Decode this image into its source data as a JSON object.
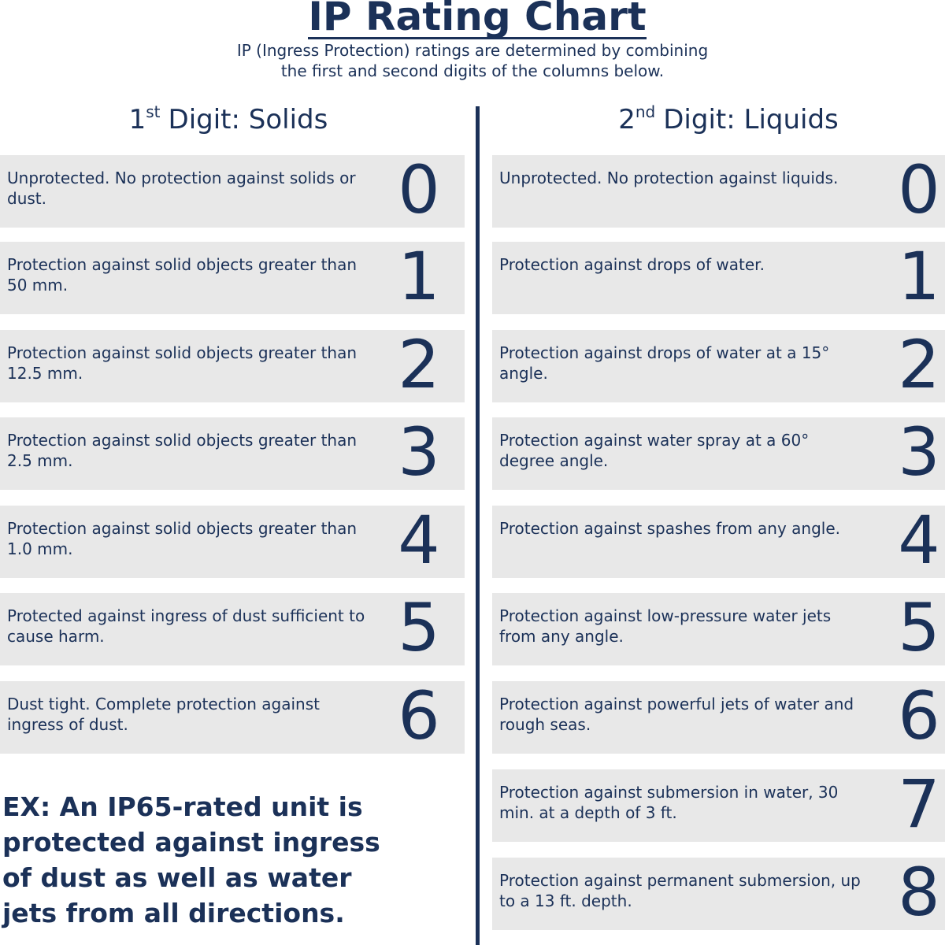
{
  "header": {
    "title": "IP Rating Chart",
    "subtitle_lines": [
      "IP (Ingress Protection) ratings are determined by combining",
      "the first and second digits of the columns below."
    ]
  },
  "columns": [
    {
      "heading": {
        "number": "1",
        "suffix": "st",
        "label": "Digit: Solids"
      },
      "rows": [
        {
          "description": "Unprotected. No protection against solids or dust.",
          "digit": "0"
        },
        {
          "description": "Protection against solid objects greater than 50 mm.",
          "digit": "1"
        },
        {
          "description": "Protection against solid objects greater than 12.5 mm.",
          "digit": "2"
        },
        {
          "description": "Protection against solid objects greater than 2.5 mm.",
          "digit": "3"
        },
        {
          "description": "Protection against solid objects greater than 1.0 mm.",
          "digit": "4"
        },
        {
          "description": "Protected against ingress of dust sufficient to cause harm.",
          "digit": "5"
        },
        {
          "description": "Dust tight. Complete protection against ingress of dust.",
          "digit": "6"
        }
      ]
    },
    {
      "heading": {
        "number": "2",
        "suffix": "nd",
        "label": "Digit: Liquids"
      },
      "rows": [
        {
          "description": "Unprotected. No protection against liquids.",
          "digit": "0"
        },
        {
          "description": "Protection against drops of water.",
          "digit": "1"
        },
        {
          "description": "Protection against drops of water at a 15° angle.",
          "digit": "2"
        },
        {
          "description": "Protection against water spray at a 60° degree angle.",
          "digit": "3"
        },
        {
          "description": "Protection against spashes from any angle.",
          "digit": "4"
        },
        {
          "description": "Protection against low-pressure water jets from any angle.",
          "digit": "5"
        },
        {
          "description": "Protection against powerful jets of water and rough seas.",
          "digit": "6"
        },
        {
          "description": "Protection against submersion in water, 30 min. at a depth of 3 ft.",
          "digit": "7"
        },
        {
          "description": "Protection against permanent submersion, up to a 13 ft. depth.",
          "digit": "8"
        }
      ]
    }
  ],
  "example": {
    "lines": [
      "EX: An IP65-rated unit is",
      "protected against ingress",
      "of dust as well as water",
      "jets from all directions."
    ]
  }
}
